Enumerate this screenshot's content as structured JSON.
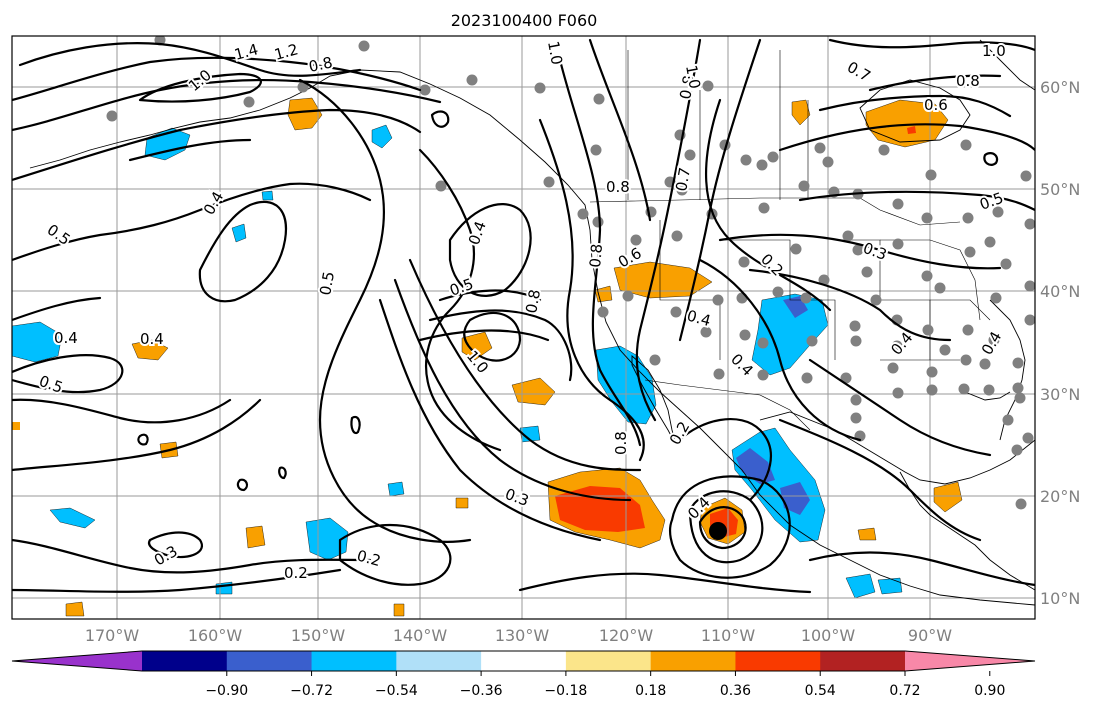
{
  "title": "2023100400 F060",
  "longitude_labels": [
    "170°W",
    "160°W",
    "150°W",
    "140°W",
    "130°W",
    "120°W",
    "110°W",
    "100°W",
    "90°W"
  ],
  "latitude_labels": [
    "60°N",
    "50°N",
    "40°N",
    "30°N",
    "20°N",
    "10°N"
  ],
  "colorbar": {
    "ticks": [
      "−0.90",
      "−0.72",
      "−0.54",
      "−0.36",
      "−0.18",
      "0.18",
      "0.36",
      "0.54",
      "0.72",
      "0.90"
    ],
    "colors": [
      "#9932cc",
      "#00008b",
      "#3a5fcd",
      "#00bfff",
      "#b0e0f8",
      "#ffffff",
      "#fbe58a",
      "#f9a000",
      "#f93a00",
      "#b22222",
      "#f888a8"
    ]
  },
  "contour_labels": [
    {
      "text": "1.4"
    },
    {
      "text": "1.2"
    },
    {
      "text": "0.8"
    },
    {
      "text": "1.0"
    },
    {
      "text": "1.0"
    },
    {
      "text": "0.4"
    },
    {
      "text": "0.5"
    },
    {
      "text": "0.5"
    },
    {
      "text": "0.4"
    },
    {
      "text": "0.4"
    },
    {
      "text": "0.5"
    },
    {
      "text": "0.4"
    },
    {
      "text": "0.5"
    },
    {
      "text": "1.0"
    },
    {
      "text": "0.8"
    },
    {
      "text": "0.6"
    },
    {
      "text": "0.8"
    },
    {
      "text": "0.8"
    },
    {
      "text": "0.7"
    },
    {
      "text": "0.8"
    },
    {
      "text": "1.0"
    },
    {
      "text": "0.7"
    },
    {
      "text": "0.8"
    },
    {
      "text": "0.6"
    },
    {
      "text": "1.0"
    },
    {
      "text": "0.5"
    },
    {
      "text": "0.3"
    },
    {
      "text": "0.2"
    },
    {
      "text": "0.4"
    },
    {
      "text": "0.4"
    },
    {
      "text": "0.4"
    },
    {
      "text": "0.8"
    },
    {
      "text": "0.2"
    },
    {
      "text": "0.3"
    },
    {
      "text": "0.4"
    },
    {
      "text": "0.3"
    },
    {
      "text": "0.2"
    },
    {
      "text": "0.2"
    },
    {
      "text": "0.4"
    }
  ]
}
